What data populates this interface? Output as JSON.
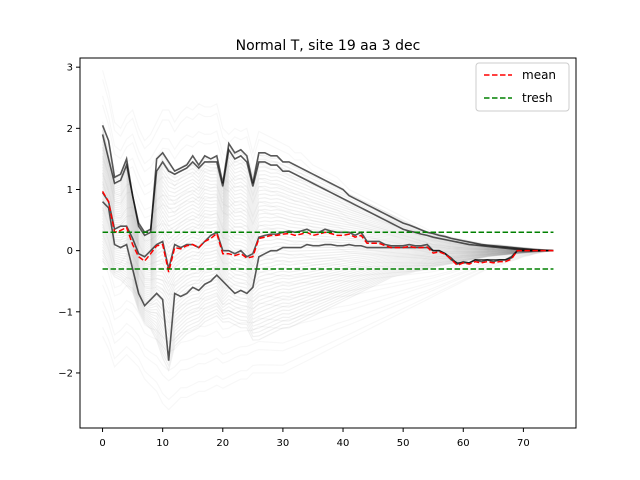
{
  "chart_data": {
    "type": "line",
    "title": "Normal T, site 19 aa 3 dec",
    "xlabel": "",
    "ylabel": "",
    "xlim": [
      -3.75,
      78.75
    ],
    "ylim": [
      -2.9,
      3.15
    ],
    "x_ticks": [
      0,
      10,
      20,
      30,
      40,
      50,
      60,
      70
    ],
    "x_tick_labels": [
      "0",
      "10",
      "20",
      "30",
      "40",
      "50",
      "60",
      "70"
    ],
    "y_ticks": [
      -2,
      -1,
      0,
      1,
      2,
      3
    ],
    "y_tick_labels": [
      "−2",
      "−1",
      "0",
      "1",
      "2",
      "3"
    ],
    "grid": false,
    "legend_position": "top-right",
    "legend": [
      {
        "label": "mean",
        "color": "#ff0000",
        "style": "dashed"
      },
      {
        "label": "tresh",
        "color": "#008000",
        "style": "dashed"
      }
    ],
    "series": [
      {
        "name": "mean",
        "color": "#ff0000",
        "x": [
          0,
          1,
          2,
          3,
          4,
          5,
          6,
          7,
          8,
          9,
          10,
          11,
          12,
          13,
          14,
          15,
          16,
          17,
          18,
          19,
          20,
          21,
          22,
          23,
          24,
          25,
          26,
          27,
          28,
          29,
          30,
          31,
          32,
          33,
          34,
          35,
          36,
          37,
          38,
          39,
          40,
          41,
          42,
          43,
          44,
          45,
          46,
          47,
          48,
          49,
          50,
          51,
          52,
          53,
          54,
          55,
          56,
          57,
          58,
          59,
          60,
          61,
          62,
          63,
          64,
          65,
          66,
          67,
          68,
          69,
          70,
          71,
          72,
          73,
          74,
          75
        ],
        "values": [
          0.97,
          0.8,
          0.3,
          0.33,
          0.38,
          0.1,
          -0.1,
          -0.17,
          -0.05,
          0.08,
          0.1,
          -0.35,
          0.05,
          0.03,
          0.08,
          0.1,
          0.05,
          0.15,
          0.2,
          0.28,
          -0.05,
          -0.05,
          -0.08,
          -0.05,
          -0.12,
          -0.1,
          0.2,
          0.22,
          0.25,
          0.25,
          0.27,
          0.28,
          0.25,
          0.27,
          0.3,
          0.25,
          0.27,
          0.3,
          0.28,
          0.25,
          0.25,
          0.27,
          0.22,
          0.25,
          0.12,
          0.12,
          0.12,
          0.08,
          0.05,
          0.05,
          0.05,
          0.07,
          0.05,
          0.05,
          0.06,
          -0.04,
          -0.02,
          -0.06,
          -0.14,
          -0.24,
          -0.2,
          -0.22,
          -0.18,
          -0.2,
          -0.18,
          -0.2,
          -0.18,
          -0.18,
          -0.14,
          0.0,
          0.0,
          0.0,
          0.0,
          0.0,
          0.0,
          0.0
        ]
      },
      {
        "name": "tresh",
        "color": "#008000",
        "lines": [
          {
            "x": [
              0,
              75
            ],
            "values": [
              0.3,
              0.3
            ]
          },
          {
            "x": [
              0,
              75
            ],
            "values": [
              -0.3,
              -0.3
            ]
          }
        ]
      }
    ],
    "background_traces": {
      "color": "#000000",
      "description_count": 70,
      "x": [
        0,
        1,
        2,
        3,
        4,
        5,
        6,
        7,
        8,
        9,
        10,
        11,
        12,
        13,
        14,
        15,
        16,
        17,
        18,
        19,
        20,
        21,
        22,
        23,
        24,
        25,
        26,
        27,
        28,
        29,
        30,
        31,
        32,
        33,
        34,
        35,
        36,
        37,
        38,
        39,
        40,
        41,
        42,
        43,
        44,
        45,
        46,
        47,
        48,
        49,
        50,
        51,
        52,
        53,
        54,
        55,
        56,
        57,
        58,
        59,
        60,
        61,
        62,
        63,
        64,
        65,
        66,
        67,
        68,
        69,
        70,
        71,
        72,
        73,
        74,
        75
      ],
      "upper_envelope": [
        2.95,
        2.6,
        2.1,
        2.0,
        2.2,
        2.3,
        2.0,
        1.8,
        1.9,
        2.1,
        2.3,
        2.3,
        2.1,
        2.25,
        2.35,
        2.3,
        2.4,
        2.35,
        2.35,
        2.4,
        2.0,
        1.9,
        2.0,
        1.95,
        2.0,
        1.6,
        1.95,
        1.9,
        1.85,
        1.8,
        1.75,
        1.7,
        1.6,
        1.6,
        1.5,
        1.4,
        1.35,
        1.3,
        1.25,
        1.2,
        1.1,
        1.0,
        0.95,
        0.9,
        0.85,
        0.8,
        0.75,
        0.7,
        0.65,
        0.6,
        0.55,
        0.5,
        0.45,
        0.4,
        0.35,
        0.3,
        0.28,
        0.25,
        0.22,
        0.2,
        0.18,
        0.16,
        0.14,
        0.12,
        0.1,
        0.1,
        0.1,
        0.08,
        0.07,
        0.05,
        0.04,
        0.03,
        0.02,
        0.01,
        0.0,
        0.0
      ],
      "lower_envelope": [
        -1.4,
        -1.6,
        -1.9,
        -1.8,
        -1.7,
        -1.8,
        -1.9,
        -2.1,
        -2.2,
        -2.3,
        -2.5,
        -2.6,
        -2.5,
        -2.4,
        -2.4,
        -2.35,
        -2.3,
        -2.3,
        -2.25,
        -2.2,
        -2.25,
        -2.2,
        -2.15,
        -2.1,
        -2.1,
        -2.0,
        -2.0,
        -2.0,
        -2.0,
        -2.0,
        -2.0,
        -1.95,
        -1.9,
        -1.85,
        -1.8,
        -1.75,
        -1.7,
        -1.65,
        -1.6,
        -1.55,
        -1.5,
        -1.45,
        -1.4,
        -1.35,
        -1.3,
        -1.25,
        -1.2,
        -1.15,
        -1.1,
        -1.05,
        -1.0,
        -0.95,
        -0.9,
        -0.85,
        -0.8,
        -0.75,
        -0.7,
        -0.65,
        -0.6,
        -0.55,
        -0.5,
        -0.45,
        -0.4,
        -0.35,
        -0.3,
        -0.27,
        -0.24,
        -0.2,
        -0.17,
        -0.14,
        -0.1,
        -0.08,
        -0.05,
        -0.03,
        -0.01,
        0.0
      ],
      "dense_upper": [
        2.05,
        1.6,
        1.2,
        1.25,
        1.5,
        0.9,
        0.4,
        0.25,
        0.35,
        1.2,
        1.6,
        1.45,
        1.35,
        1.4,
        1.45,
        1.5,
        1.4,
        1.55,
        1.5,
        1.5,
        1.1,
        1.75,
        1.6,
        1.65,
        1.55,
        1.25,
        1.6,
        1.6,
        1.55,
        1.55,
        1.5,
        1.45,
        1.4,
        1.35,
        1.3,
        1.25,
        1.2,
        1.15,
        1.1,
        1.05,
        1.0,
        0.95,
        0.9,
        0.85,
        0.8,
        0.75,
        0.7,
        0.65,
        0.6,
        0.55,
        0.5,
        0.45,
        0.4,
        0.35,
        0.32,
        0.3,
        0.28,
        0.25,
        0.22,
        0.2,
        0.18,
        0.16,
        0.14,
        0.12,
        0.1,
        0.1,
        0.09,
        0.08,
        0.07,
        0.06,
        0.05,
        0.04,
        0.03,
        0.02,
        0.01,
        0.0
      ],
      "dense_lower": [
        -0.2,
        -0.3,
        -0.45,
        -0.5,
        -0.6,
        -0.7,
        -1.0,
        -1.2,
        -1.3,
        -1.5,
        -1.8,
        -2.0,
        -1.6,
        -1.5,
        -1.4,
        -1.35,
        -1.3,
        -1.2,
        -1.15,
        -1.1,
        -1.2,
        -1.2,
        -1.25,
        -1.3,
        -1.3,
        -1.5,
        -1.5,
        -1.45,
        -1.4,
        -1.35,
        -1.3,
        -1.3,
        -1.25,
        -1.2,
        -1.15,
        -1.1,
        -1.05,
        -1.0,
        -0.95,
        -0.9,
        -0.85,
        -0.8,
        -0.75,
        -0.7,
        -0.65,
        -0.6,
        -0.55,
        -0.5,
        -0.45,
        -0.42,
        -0.4,
        -0.38,
        -0.35,
        -0.33,
        -0.3,
        -0.28,
        -0.26,
        -0.24,
        -0.22,
        -0.2,
        -0.18,
        -0.16,
        -0.14,
        -0.12,
        -0.1,
        -0.09,
        -0.08,
        -0.07,
        -0.06,
        -0.05,
        -0.04,
        -0.03,
        -0.02,
        -0.01,
        0.0,
        0.0
      ],
      "highlight_traces": [
        [
          2.05,
          1.8,
          1.2,
          1.25,
          1.5,
          0.9,
          0.4,
          0.25,
          0.3,
          1.5,
          1.6,
          1.45,
          1.3,
          1.35,
          1.4,
          1.55,
          1.4,
          1.55,
          1.5,
          1.55,
          1.1,
          1.75,
          1.6,
          1.65,
          1.55,
          1.1,
          1.6,
          1.6,
          1.55,
          1.55,
          1.45,
          1.45,
          1.4,
          1.35,
          1.3,
          1.25,
          1.2,
          1.15,
          1.1,
          1.05,
          1.0,
          0.9,
          0.85,
          0.8,
          0.75,
          0.7,
          0.65,
          0.6,
          0.55,
          0.5,
          0.45,
          0.42,
          0.38,
          0.34,
          0.3,
          0.28,
          0.25,
          0.23,
          0.2,
          0.18,
          0.16,
          0.14,
          0.12,
          0.1,
          0.09,
          0.08,
          0.07,
          0.06,
          0.05,
          0.04,
          0.03,
          0.02,
          0.01,
          0.0,
          0.0,
          0.0
        ],
        [
          0.8,
          0.7,
          0.1,
          0.05,
          0.1,
          -0.3,
          -0.7,
          -0.9,
          -0.8,
          -0.7,
          -0.8,
          -1.8,
          -0.7,
          -0.75,
          -0.7,
          -0.6,
          -0.65,
          -0.55,
          -0.5,
          -0.4,
          -0.5,
          -0.6,
          -0.7,
          -0.65,
          -0.7,
          -0.6,
          -0.1,
          -0.05,
          0.0,
          0.0,
          0.05,
          0.05,
          0.05,
          0.05,
          0.1,
          0.08,
          0.08,
          0.1,
          0.1,
          0.08,
          0.08,
          0.1,
          0.08,
          0.08,
          0.05,
          0.05,
          0.05,
          0.05,
          0.05,
          0.05,
          0.05,
          0.05,
          0.05,
          0.05,
          0.05,
          0.0,
          0.0,
          -0.05,
          -0.15,
          -0.2,
          -0.2,
          -0.2,
          -0.15,
          -0.15,
          -0.15,
          -0.15,
          -0.15,
          -0.15,
          -0.1,
          0.0,
          0.0,
          0.0,
          0.0,
          0.0,
          0.0,
          0.0
        ],
        [
          0.95,
          0.8,
          0.35,
          0.4,
          0.4,
          0.2,
          -0.05,
          -0.1,
          0.0,
          0.1,
          0.15,
          -0.3,
          0.1,
          0.05,
          0.1,
          0.1,
          0.05,
          0.15,
          0.25,
          0.3,
          0.0,
          0.0,
          -0.05,
          0.0,
          -0.1,
          -0.05,
          0.22,
          0.25,
          0.27,
          0.27,
          0.3,
          0.32,
          0.3,
          0.32,
          0.35,
          0.3,
          0.3,
          0.35,
          0.32,
          0.3,
          0.3,
          0.3,
          0.25,
          0.3,
          0.15,
          0.15,
          0.15,
          0.1,
          0.08,
          0.08,
          0.08,
          0.1,
          0.08,
          0.08,
          0.1,
          0.0,
          0.0,
          -0.05,
          -0.12,
          -0.22,
          -0.18,
          -0.2,
          -0.15,
          -0.18,
          -0.15,
          -0.18,
          -0.15,
          -0.15,
          -0.12,
          0.0,
          0.0,
          0.0,
          0.0,
          0.0,
          0.0,
          0.0
        ],
        [
          1.9,
          1.5,
          1.1,
          1.15,
          1.4,
          0.9,
          0.45,
          0.3,
          0.35,
          1.3,
          1.45,
          1.3,
          1.25,
          1.3,
          1.35,
          1.45,
          1.35,
          1.45,
          1.45,
          1.45,
          1.05,
          1.65,
          1.5,
          1.55,
          1.45,
          1.05,
          1.45,
          1.45,
          1.4,
          1.4,
          1.3,
          1.3,
          1.25,
          1.2,
          1.15,
          1.1,
          1.05,
          1.0,
          0.95,
          0.9,
          0.85,
          0.8,
          0.75,
          0.7,
          0.65,
          0.6,
          0.55,
          0.5,
          0.45,
          0.4,
          0.35,
          0.32,
          0.3,
          0.27,
          0.25,
          0.22,
          0.2,
          0.18,
          0.16,
          0.14,
          0.12,
          0.1,
          0.09,
          0.08,
          0.07,
          0.06,
          0.05,
          0.04,
          0.03,
          0.02,
          0.01,
          0.0,
          0.0,
          0.0,
          0.0,
          0.0
        ]
      ]
    }
  }
}
